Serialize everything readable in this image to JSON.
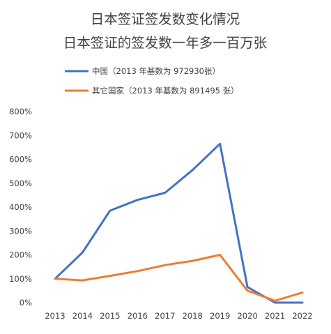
{
  "chart_data": {
    "type": "line",
    "title_lines": [
      "日本签证签发数变化情况",
      "日本签证的签发数一年多一百万张"
    ],
    "categories": [
      "2013",
      "2014",
      "2015",
      "2016",
      "2017",
      "2018",
      "2019",
      "2020",
      "2021",
      "2022"
    ],
    "series": [
      {
        "name": "中国（2013 年基数为 972930张）",
        "color": "#4472C4",
        "values": [
          100,
          210,
          385,
          430,
          460,
          555,
          665,
          65,
          0,
          0
        ]
      },
      {
        "name": "其它国家（2013 年基数为 891495 张）",
        "color": "#ED7D31",
        "values": [
          100,
          93,
          112,
          132,
          157,
          175,
          200,
          50,
          8,
          42
        ]
      }
    ],
    "y_ticks": [
      "0%",
      "100%",
      "200%",
      "300%",
      "400%",
      "500%",
      "600%",
      "700%",
      "800%"
    ],
    "ylim": [
      0,
      800
    ],
    "grid": false,
    "legend_position": "top"
  }
}
